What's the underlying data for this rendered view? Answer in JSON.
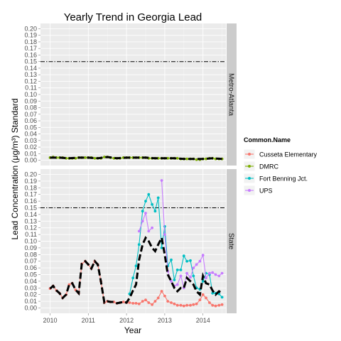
{
  "chart_data": {
    "type": "line",
    "title": "Yearly Trend in Georgia Lead",
    "xlabel": "Year",
    "ylabel": "Lead Concentration (μg/m³) Standard",
    "xlim": [
      2009.75,
      2014.6
    ],
    "ylim": [
      -0.008,
      0.208
    ],
    "x_ticks": [
      "2010",
      "2011",
      "2012",
      "2013",
      "2014"
    ],
    "y_ticks": [
      "0.00",
      "0.01",
      "0.02",
      "0.03",
      "0.04",
      "0.05",
      "0.06",
      "0.07",
      "0.08",
      "0.09",
      "0.10",
      "0.11",
      "0.12",
      "0.13",
      "0.14",
      "0.15",
      "0.16",
      "0.17",
      "0.18",
      "0.19",
      "0.20"
    ],
    "standard_line": 0.15,
    "grid": true,
    "legend": {
      "title": "Common.Name",
      "position": "right",
      "entries": [
        {
          "name": "Cusseta Elementary",
          "color": "#F8766D"
        },
        {
          "name": "DMRC",
          "color": "#7CAE00"
        },
        {
          "name": "Fort Benning Jct.",
          "color": "#00BFC4"
        },
        {
          "name": "UPS",
          "color": "#C77CFF"
        }
      ]
    },
    "facets": [
      {
        "label": "Metro-Atlanta",
        "series": [
          {
            "name": "DMRC",
            "color": "#7CAE00",
            "x": [
              2010.0,
              2010.08,
              2010.17,
              2010.25,
              2010.33,
              2010.42,
              2010.5,
              2010.58,
              2010.67,
              2010.75,
              2010.83,
              2010.92,
              2011.0,
              2011.08,
              2011.17,
              2011.25,
              2011.33,
              2011.42,
              2011.5,
              2011.58,
              2011.67,
              2011.75,
              2011.83,
              2011.92,
              2012.0,
              2012.08,
              2012.17,
              2012.25,
              2012.33,
              2012.42,
              2012.5,
              2012.58,
              2012.67,
              2012.75,
              2012.83,
              2012.92,
              2013.0,
              2013.08,
              2013.17,
              2013.25,
              2013.33,
              2013.42,
              2013.5,
              2013.58,
              2013.67,
              2013.75,
              2013.83,
              2013.92,
              2014.0,
              2014.08,
              2014.17,
              2014.25,
              2014.33,
              2014.42,
              2014.5
            ],
            "y": [
              0.004,
              0.005,
              0.004,
              0.004,
              0.004,
              0.003,
              0.003,
              0.003,
              0.003,
              0.004,
              0.004,
              0.004,
              0.004,
              0.004,
              0.003,
              0.003,
              0.003,
              0.005,
              0.005,
              0.004,
              0.003,
              0.003,
              0.003,
              0.004,
              0.004,
              0.004,
              0.004,
              0.004,
              0.004,
              0.004,
              0.004,
              0.003,
              0.003,
              0.003,
              0.003,
              0.003,
              0.003,
              0.003,
              0.003,
              0.003,
              0.003,
              0.002,
              0.002,
              0.002,
              0.002,
              0.002,
              0.001,
              0.001,
              0.002,
              0.002,
              0.003,
              0.003,
              0.002,
              0.002,
              0.002
            ]
          }
        ],
        "mean": {
          "x": [
            2010.0,
            2010.25,
            2010.5,
            2010.75,
            2011.0,
            2011.25,
            2011.5,
            2011.75,
            2012.0,
            2012.25,
            2012.5,
            2012.75,
            2013.0,
            2013.25,
            2013.5,
            2013.75,
            2014.0,
            2014.25,
            2014.5
          ],
          "y": [
            0.004,
            0.004,
            0.003,
            0.004,
            0.004,
            0.003,
            0.005,
            0.003,
            0.004,
            0.004,
            0.004,
            0.003,
            0.003,
            0.003,
            0.002,
            0.002,
            0.002,
            0.003,
            0.002
          ]
        }
      },
      {
        "label": "State",
        "series": [
          {
            "name": "Cusseta Elementary",
            "color": "#F8766D",
            "x": [
              2010.0,
              2010.08,
              2010.17,
              2010.25,
              2010.33,
              2010.42,
              2010.5,
              2010.58,
              2010.67,
              2010.75,
              2010.83,
              2010.92,
              2011.0,
              2011.08,
              2011.17,
              2011.25,
              2011.33,
              2011.42,
              2011.5,
              2011.58,
              2011.67,
              2011.75,
              2011.83,
              2011.92,
              2012.0,
              2012.08,
              2012.17,
              2012.25,
              2012.33,
              2012.42,
              2012.5,
              2012.58,
              2012.67,
              2012.75,
              2012.83,
              2012.92,
              2013.0,
              2013.08,
              2013.17,
              2013.25,
              2013.33,
              2013.42,
              2013.5,
              2013.58,
              2013.67,
              2013.75,
              2013.83,
              2013.92,
              2014.0,
              2014.08,
              2014.17,
              2014.25,
              2014.33,
              2014.42,
              2014.5
            ],
            "y": [
              0.029,
              0.033,
              0.026,
              0.022,
              0.015,
              0.02,
              0.035,
              0.037,
              0.027,
              0.022,
              0.066,
              0.07,
              0.065,
              0.059,
              0.07,
              0.065,
              0.04,
              0.008,
              0.01,
              0.009,
              0.009,
              0.007,
              0.008,
              0.009,
              0.008,
              0.008,
              0.007,
              0.007,
              0.006,
              0.01,
              0.012,
              0.008,
              0.005,
              0.01,
              0.015,
              0.025,
              0.018,
              0.01,
              0.008,
              0.006,
              0.004,
              0.004,
              0.003,
              0.004,
              0.004,
              0.005,
              0.006,
              0.012,
              0.02,
              0.015,
              0.008,
              0.004,
              0.003,
              0.004,
              0.005
            ]
          },
          {
            "name": "Fort Benning Jct.",
            "color": "#00BFC4",
            "x": [
              2012.08,
              2012.17,
              2012.25,
              2012.33,
              2012.42,
              2012.5,
              2012.58,
              2012.67,
              2012.75,
              2012.83,
              2012.92,
              2013.0,
              2013.08,
              2013.17,
              2013.25,
              2013.33,
              2013.42,
              2013.5,
              2013.58,
              2013.67,
              2013.75,
              2013.83,
              2013.92,
              2014.0,
              2014.08,
              2014.17,
              2014.25,
              2014.33,
              2014.42,
              2014.5
            ],
            "y": [
              0.021,
              0.045,
              0.063,
              0.095,
              0.145,
              0.16,
              0.17,
              0.155,
              0.145,
              0.165,
              0.09,
              0.122,
              0.063,
              0.072,
              0.042,
              0.057,
              0.057,
              0.078,
              0.07,
              0.071,
              0.048,
              0.03,
              0.028,
              0.04,
              0.052,
              0.05,
              0.022,
              0.022,
              0.021,
              0.016
            ]
          },
          {
            "name": "UPS",
            "color": "#C77CFF",
            "x": [
              2012.33,
              2012.42,
              2012.5,
              2012.58,
              2012.67,
              2012.75,
              2012.83,
              2012.92,
              2013.0,
              2013.08,
              2013.17,
              2013.25,
              2013.33,
              2013.42,
              2013.5,
              2013.58,
              2013.67,
              2013.75,
              2013.83,
              2013.92,
              2014.0,
              2014.08,
              2014.17,
              2014.25,
              2014.33,
              2014.42,
              2014.5
            ],
            "y": [
              0.115,
              0.13,
              0.142,
              0.115,
              0.12,
              null,
              null,
              0.191,
              0.11,
              0.055,
              0.04,
              0.033,
              0.035,
              0.048,
              0.03,
              0.052,
              0.046,
              0.06,
              0.065,
              0.07,
              0.079,
              0.045,
              0.052,
              0.053,
              0.05,
              0.048,
              0.052
            ]
          }
        ],
        "mean": {
          "x": [
            2010.0,
            2010.08,
            2010.17,
            2010.25,
            2010.33,
            2010.42,
            2010.5,
            2010.58,
            2010.67,
            2010.75,
            2010.83,
            2010.92,
            2011.0,
            2011.08,
            2011.17,
            2011.25,
            2011.33,
            2011.42,
            2011.5,
            2011.58,
            2011.67,
            2011.75,
            2011.83,
            2011.92,
            2012.0,
            2012.08,
            2012.17,
            2012.25,
            2012.33,
            2012.42,
            2012.5,
            2012.58,
            2012.67,
            2012.75,
            2012.83,
            2012.92,
            2013.0,
            2013.08,
            2013.17,
            2013.25,
            2013.33,
            2013.42,
            2013.5,
            2013.58,
            2013.67,
            2013.75,
            2013.83,
            2013.92,
            2014.0,
            2014.08,
            2014.17,
            2014.25,
            2014.33,
            2014.42,
            2014.5
          ],
          "y": [
            0.029,
            0.033,
            0.026,
            0.022,
            0.015,
            0.02,
            0.035,
            0.037,
            0.027,
            0.022,
            0.066,
            0.07,
            0.065,
            0.059,
            0.07,
            0.065,
            0.04,
            0.008,
            0.01,
            0.009,
            0.009,
            0.007,
            0.008,
            0.009,
            0.008,
            0.015,
            0.026,
            0.035,
            0.072,
            0.095,
            0.105,
            0.1,
            0.09,
            0.085,
            0.095,
            0.105,
            0.08,
            0.05,
            0.04,
            0.03,
            0.025,
            0.03,
            0.03,
            0.045,
            0.04,
            0.035,
            0.025,
            0.02,
            0.048,
            0.037,
            0.035,
            0.026,
            0.02,
            0.025,
            0.022
          ]
        }
      }
    ]
  }
}
